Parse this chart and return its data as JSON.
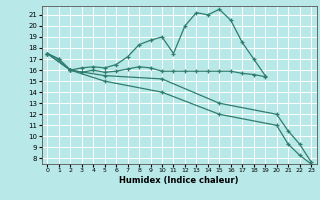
{
  "xlabel": "Humidex (Indice chaleur)",
  "line_color": "#2e7d6e",
  "bg_color": "#b8e8e8",
  "grid_color": "#ffffff",
  "ylim": [
    7.5,
    21.8
  ],
  "xlim": [
    -0.5,
    23.5
  ],
  "yticks": [
    8,
    9,
    10,
    11,
    12,
    13,
    14,
    15,
    16,
    17,
    18,
    19,
    20,
    21
  ],
  "xticks": [
    0,
    1,
    2,
    3,
    4,
    5,
    6,
    7,
    8,
    9,
    10,
    11,
    12,
    13,
    14,
    15,
    16,
    17,
    18,
    19,
    20,
    21,
    22,
    23
  ],
  "series": [
    {
      "x": [
        0,
        1,
        2,
        3,
        4,
        5,
        6,
        7,
        8,
        9,
        10,
        11,
        12,
        13,
        14,
        15,
        16,
        17,
        18,
        19
      ],
      "y": [
        17.5,
        17.0,
        16.0,
        16.2,
        16.3,
        16.2,
        16.5,
        17.2,
        18.3,
        18.7,
        19.0,
        17.5,
        20.0,
        21.2,
        21.0,
        21.5,
        20.5,
        18.5,
        17.0,
        15.5
      ]
    },
    {
      "x": [
        0,
        1,
        2,
        3,
        4,
        5,
        6,
        7,
        8,
        9,
        10,
        11,
        12,
        13,
        14,
        15,
        16,
        17,
        18,
        19
      ],
      "y": [
        17.5,
        17.0,
        16.0,
        15.8,
        16.0,
        15.8,
        15.9,
        16.1,
        16.3,
        16.2,
        15.9,
        15.9,
        15.9,
        15.9,
        15.9,
        15.9,
        15.9,
        15.7,
        15.6,
        15.4
      ]
    },
    {
      "x": [
        0,
        2,
        5,
        10,
        15,
        20,
        21,
        22,
        23
      ],
      "y": [
        17.5,
        16.0,
        15.5,
        15.2,
        13.0,
        12.0,
        10.5,
        9.3,
        7.7
      ]
    },
    {
      "x": [
        0,
        2,
        5,
        10,
        15,
        20,
        21,
        22,
        23
      ],
      "y": [
        17.5,
        16.0,
        15.0,
        14.0,
        12.0,
        11.0,
        9.3,
        8.3,
        7.5
      ]
    }
  ]
}
